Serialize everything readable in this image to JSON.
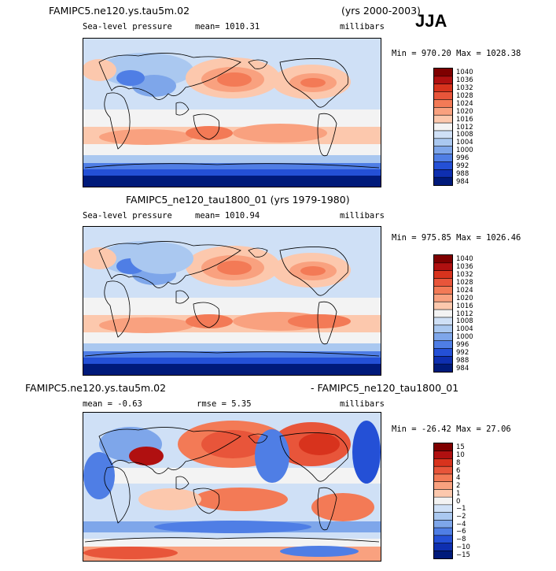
{
  "season": "JJA",
  "chart_data": [
    {
      "type": "heatmap",
      "title": "FAMIPC5.ne120.ys.tau5m.02",
      "period": "(yrs 2000-2003)",
      "variable": "Sea-level pressure",
      "stat_label": "mean= 1010.31",
      "units": "millibars",
      "minmax": "Min = 970.20 Max = 1028.38",
      "min": 970.2,
      "max": 1028.38,
      "mean": 1010.31,
      "levels": [
        "1040",
        "1036",
        "1032",
        "1028",
        "1024",
        "1020",
        "1016",
        "1012",
        "1008",
        "1004",
        "1000",
        "996",
        "992",
        "988",
        "984"
      ],
      "colors": [
        "#7f0000",
        "#b01010",
        "#d8331d",
        "#e8553a",
        "#f37a56",
        "#f9a17f",
        "#fcc8ad",
        "#f3f3f3",
        "#cfe0f6",
        "#aac8f0",
        "#7ea6ea",
        "#4f7ee5",
        "#2450d6",
        "#0e2fb0",
        "#001a7a"
      ]
    },
    {
      "type": "heatmap",
      "title": "FAMIPC5_ne120_tau1800_01 (yrs 1979-1980)",
      "variable": "Sea-level pressure",
      "stat_label": "mean= 1010.94",
      "units": "millibars",
      "minmax": "Min = 975.85 Max = 1026.46",
      "min": 975.85,
      "max": 1026.46,
      "mean": 1010.94,
      "levels": [
        "1040",
        "1036",
        "1032",
        "1028",
        "1024",
        "1020",
        "1016",
        "1012",
        "1008",
        "1004",
        "1000",
        "996",
        "992",
        "988",
        "984"
      ],
      "colors": [
        "#7f0000",
        "#b01010",
        "#d8331d",
        "#e8553a",
        "#f37a56",
        "#f9a17f",
        "#fcc8ad",
        "#f3f3f3",
        "#cfe0f6",
        "#aac8f0",
        "#7ea6ea",
        "#4f7ee5",
        "#2450d6",
        "#0e2fb0",
        "#001a7a"
      ]
    },
    {
      "type": "heatmap",
      "title": "FAMIPC5.ne120.ys.tau5m.02",
      "title_right": "- FAMIPC5_ne120_tau1800_01",
      "stat_label": "mean =  -0.63",
      "rmse_label": "rmse =   5.35",
      "units": "millibars",
      "minmax": "Min = -26.42 Max =  27.06",
      "min": -26.42,
      "max": 27.06,
      "mean": -0.63,
      "rmse": 5.35,
      "levels": [
        "15",
        "10",
        "8",
        "6",
        "4",
        "2",
        "1",
        "0",
        "−1",
        "−2",
        "−4",
        "−6",
        "−8",
        "−10",
        "−15"
      ],
      "colors": [
        "#7f0000",
        "#b01010",
        "#d8331d",
        "#e8553a",
        "#f37a56",
        "#f9a17f",
        "#fcc8ad",
        "#f3f3f3",
        "#cfe0f6",
        "#aac8f0",
        "#7ea6ea",
        "#4f7ee5",
        "#2450d6",
        "#0e2fb0",
        "#001a7a"
      ]
    }
  ]
}
